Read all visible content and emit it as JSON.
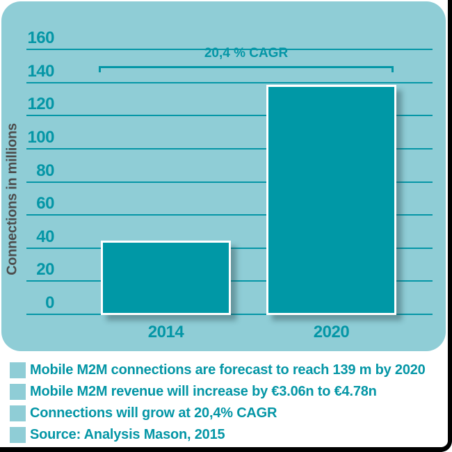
{
  "chart_data": {
    "type": "bar",
    "title": "",
    "categories": [
      "2014",
      "2020"
    ],
    "values": [
      45,
      139
    ],
    "xlabel": "",
    "ylabel": "Connections in millions",
    "ylim": [
      0,
      160
    ],
    "yticks": [
      0,
      20,
      40,
      60,
      80,
      100,
      120,
      140,
      160
    ],
    "grid": true,
    "legend": false,
    "annotation": {
      "label": "20,4 % CAGR"
    }
  },
  "bullets": [
    {
      "text": "Mobile M2M connections are forecast to reach 139 m by 2020"
    },
    {
      "text": "Mobile M2M revenue will increase by €3.06n to €4.78n"
    },
    {
      "text": "Connections will grow at 20,4% CAGR"
    },
    {
      "text": "Source: Analysis Mason, 2015"
    }
  ],
  "colors": {
    "card_background": "#8fcdd6",
    "teal_dark": "#0496a6",
    "bar_fill": "#0098a6",
    "bar_border": "#ffffff",
    "axis_title_gray": "#4d4d4d",
    "frame_black": "#000000"
  }
}
